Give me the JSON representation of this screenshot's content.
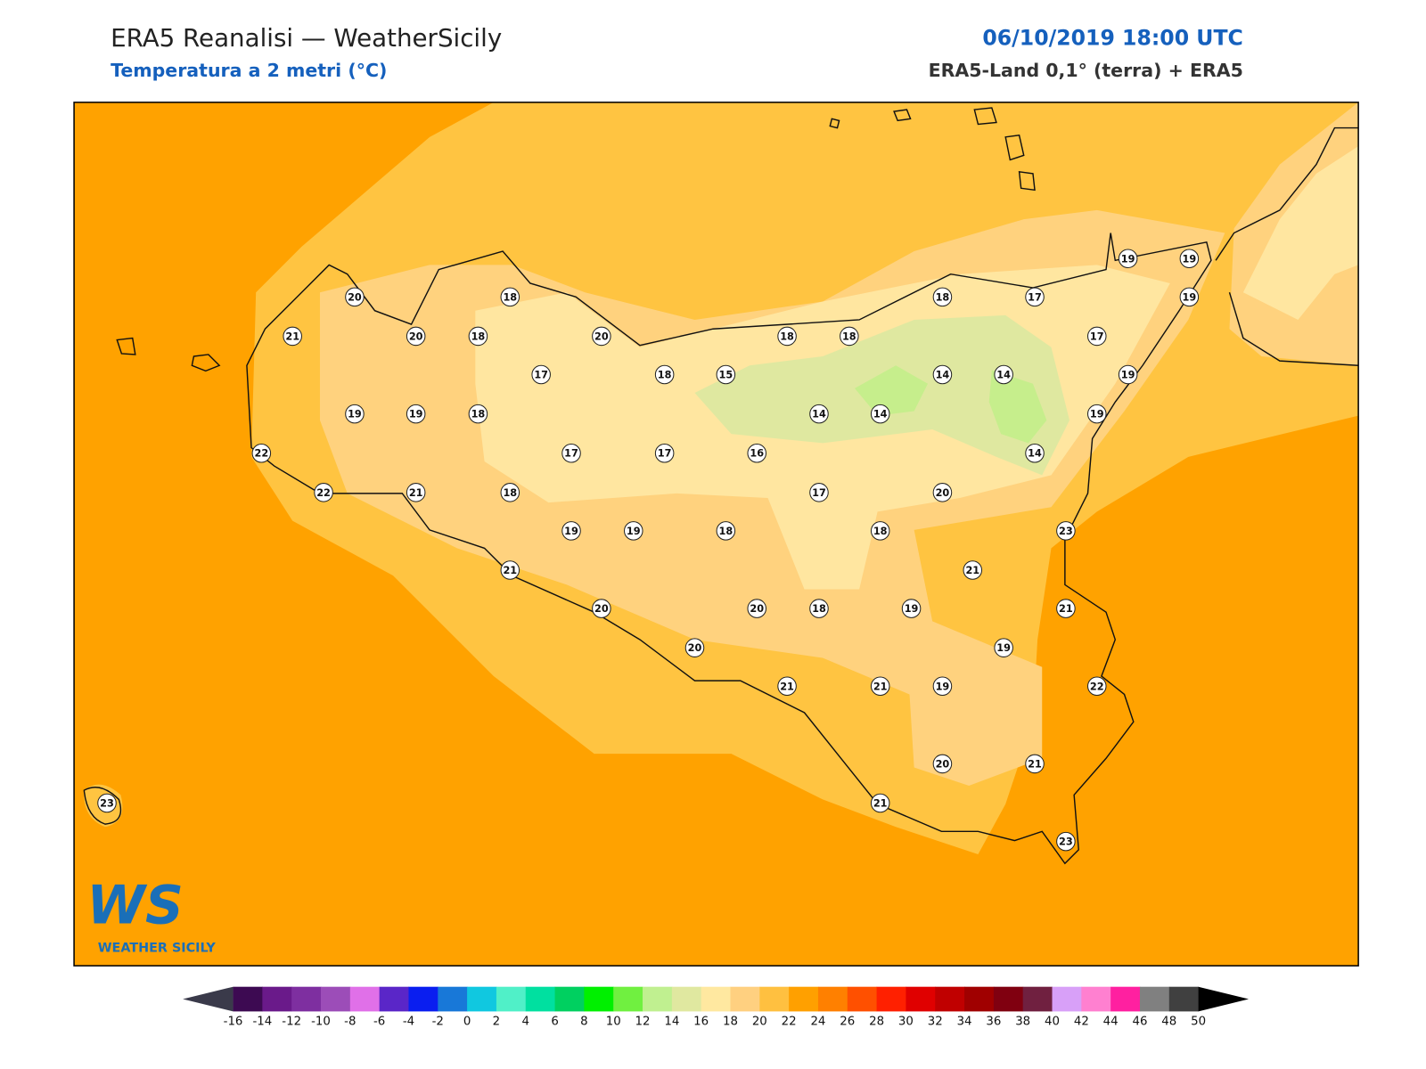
{
  "header": {
    "title": "ERA5 Reanalisi — WeatherSicily",
    "subtitle": "Temperatura a 2 metri (°C)",
    "datetime": "06/10/2019 18:00 UTC",
    "source": "ERA5-Land 0,1° (terra) + ERA5"
  },
  "stations": [
    20,
    21,
    20,
    18,
    18,
    20,
    17,
    18,
    15,
    18,
    18,
    18,
    17,
    19,
    19,
    19,
    17,
    19,
    14,
    14,
    14,
    14,
    19,
    14,
    19,
    19,
    18,
    22,
    22,
    21,
    18,
    17,
    17,
    16,
    17,
    20,
    19,
    19,
    18,
    18,
    23,
    21,
    21,
    20,
    20,
    18,
    19,
    21,
    20,
    19,
    21,
    21,
    19,
    22,
    20,
    21,
    21,
    23,
    23
  ],
  "colorbar": {
    "ticks": [
      -16,
      -14,
      -12,
      -10,
      -8,
      -6,
      -4,
      -2,
      0,
      2,
      4,
      6,
      8,
      10,
      12,
      14,
      16,
      18,
      20,
      22,
      24,
      26,
      28,
      30,
      32,
      34,
      36,
      38,
      40,
      42,
      44,
      46,
      48,
      50
    ],
    "colors": [
      "#3d0a52",
      "#6a1a8a",
      "#7e2fa0",
      "#9c4db8",
      "#e070e8",
      "#5a26c8",
      "#0a1ef0",
      "#1878d8",
      "#10c8e0",
      "#50f0c8",
      "#00e0a0",
      "#00d060",
      "#00f000",
      "#70f040",
      "#c0f090",
      "#e0e8a0",
      "#ffe8a0",
      "#ffd080",
      "#ffc040",
      "#ffa000",
      "#ff8000",
      "#ff5000",
      "#ff2000",
      "#e00000",
      "#c00000",
      "#a00000",
      "#800010",
      "#702040",
      "#d8a0f8",
      "#ff80d0",
      "#ff20a0",
      "#808080",
      "#404040"
    ],
    "under_color": "#3a3a4a",
    "over_color": "#000000"
  },
  "logo": {
    "text": "WS",
    "caption": "WEATHER SICILY"
  }
}
